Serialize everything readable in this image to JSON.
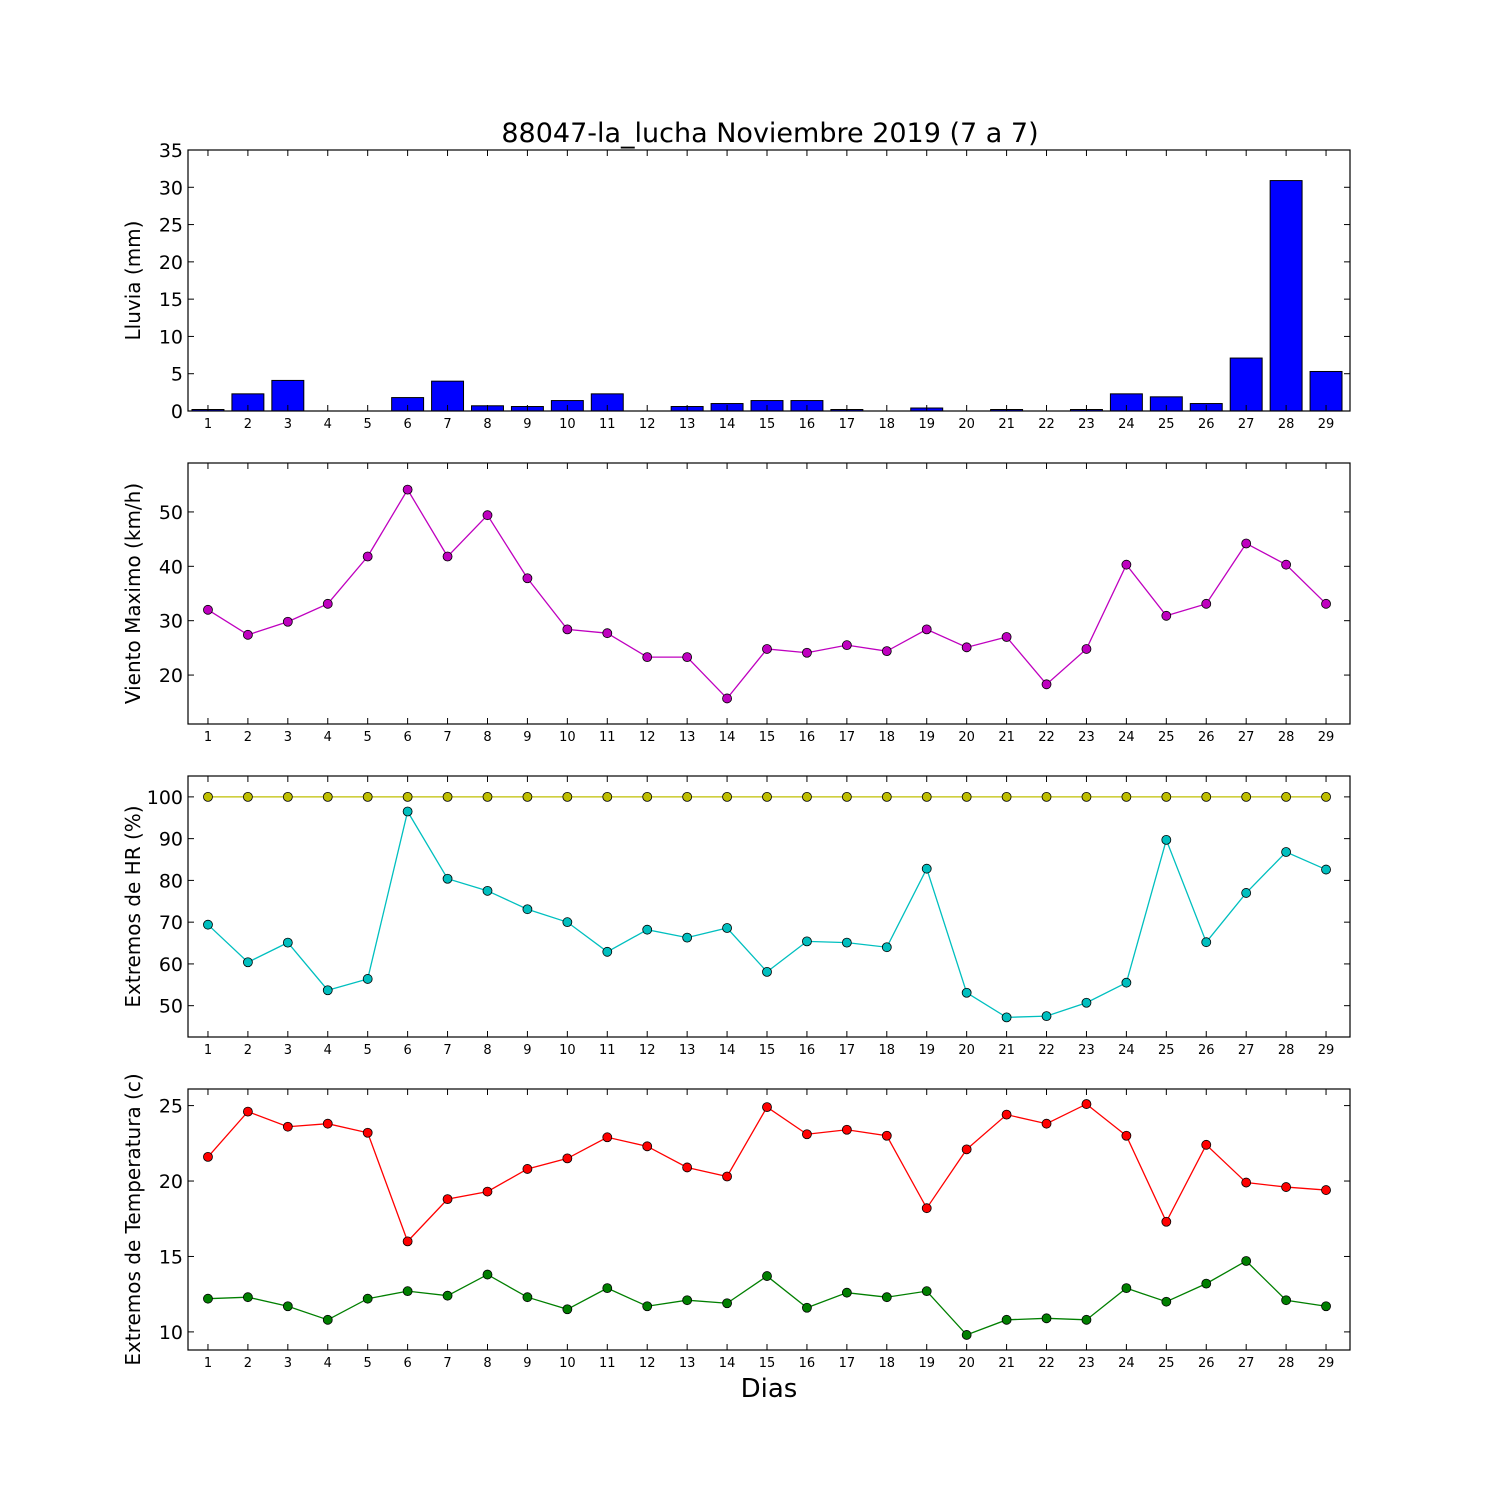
{
  "title": "88047-la_lucha Noviembre 2019  (7 a 7)",
  "xlabel": "Dias",
  "days": [
    1,
    2,
    3,
    4,
    5,
    6,
    7,
    8,
    9,
    10,
    11,
    12,
    13,
    14,
    15,
    16,
    17,
    18,
    19,
    20,
    21,
    22,
    23,
    24,
    25,
    26,
    27,
    28,
    29
  ],
  "chart_data": [
    {
      "type": "bar",
      "ylabel": "Lluvia (mm)",
      "ylim": [
        0,
        35
      ],
      "yticks": [
        0,
        5,
        10,
        15,
        20,
        25,
        30,
        35
      ],
      "categories": [
        1,
        2,
        3,
        4,
        5,
        6,
        7,
        8,
        9,
        10,
        11,
        12,
        13,
        14,
        15,
        16,
        17,
        18,
        19,
        20,
        21,
        22,
        23,
        24,
        25,
        26,
        27,
        28,
        29
      ],
      "series": [
        {
          "color": "#0000ff",
          "values": [
            0.2,
            2.3,
            4.1,
            0,
            0,
            1.8,
            4.0,
            0.7,
            0.6,
            1.4,
            2.3,
            0,
            0.6,
            1.0,
            1.4,
            1.4,
            0.2,
            0,
            0.4,
            0,
            0.2,
            0,
            0.2,
            2.3,
            1.9,
            1.0,
            7.1,
            30.9,
            5.3
          ]
        }
      ]
    },
    {
      "type": "line",
      "ylabel": "Viento Maximo (km/h)",
      "ylim": [
        11,
        59
      ],
      "yticks": [
        20,
        30,
        40,
        50
      ],
      "x": [
        1,
        2,
        3,
        4,
        5,
        6,
        7,
        8,
        9,
        10,
        11,
        12,
        13,
        14,
        15,
        16,
        17,
        18,
        19,
        20,
        21,
        22,
        23,
        24,
        25,
        26,
        27,
        28,
        29
      ],
      "series": [
        {
          "color": "#bf00bf",
          "values": [
            32,
            27.4,
            29.8,
            33.1,
            41.8,
            54.1,
            41.8,
            49.4,
            37.8,
            28.4,
            27.7,
            23.3,
            23.3,
            15.7,
            24.8,
            24.1,
            25.5,
            24.4,
            28.4,
            25.1,
            27,
            18.3,
            24.8,
            40.3,
            30.9,
            33.1,
            44.2,
            40.3,
            33.1
          ]
        }
      ]
    },
    {
      "type": "line",
      "ylabel": "Extremos de HR (%)",
      "ylim": [
        42.5,
        105
      ],
      "yticks": [
        50,
        60,
        70,
        80,
        90,
        100
      ],
      "x": [
        1,
        2,
        3,
        4,
        5,
        6,
        7,
        8,
        9,
        10,
        11,
        12,
        13,
        14,
        15,
        16,
        17,
        18,
        19,
        20,
        21,
        22,
        23,
        24,
        25,
        26,
        27,
        28,
        29
      ],
      "series": [
        {
          "color": "#bfbf00",
          "values": [
            100,
            100,
            100,
            100,
            100,
            100,
            100,
            100,
            100,
            100,
            100,
            100,
            100,
            100,
            100,
            100,
            100,
            100,
            100,
            100,
            100,
            100,
            100,
            100,
            100,
            100,
            100,
            100,
            100
          ]
        },
        {
          "color": "#00bfbf",
          "values": [
            69.4,
            60.4,
            65.1,
            53.7,
            56.4,
            96.5,
            80.4,
            77.5,
            73.1,
            70.0,
            62.9,
            68.2,
            66.3,
            68.6,
            58.1,
            65.4,
            65.1,
            64.0,
            82.8,
            53.1,
            47.2,
            47.5,
            50.7,
            55.5,
            89.7,
            65.2,
            77.0,
            86.8,
            82.6
          ]
        }
      ]
    },
    {
      "type": "line",
      "ylabel": "Extremos de Temperatura (c)",
      "ylim": [
        8.8,
        26.1
      ],
      "yticks": [
        10,
        15,
        20,
        25
      ],
      "x": [
        1,
        2,
        3,
        4,
        5,
        6,
        7,
        8,
        9,
        10,
        11,
        12,
        13,
        14,
        15,
        16,
        17,
        18,
        19,
        20,
        21,
        22,
        23,
        24,
        25,
        26,
        27,
        28,
        29
      ],
      "series": [
        {
          "color": "#ff0000",
          "values": [
            21.6,
            24.6,
            23.6,
            23.8,
            23.2,
            16.0,
            18.8,
            19.3,
            20.8,
            21.5,
            22.9,
            22.3,
            20.9,
            20.3,
            24.9,
            23.1,
            23.4,
            23.0,
            18.2,
            22.1,
            24.4,
            23.8,
            25.1,
            23.0,
            17.3,
            22.4,
            19.9,
            19.6,
            19.4
          ]
        },
        {
          "color": "#007f00",
          "values": [
            12.2,
            12.3,
            11.7,
            10.8,
            12.2,
            12.7,
            12.4,
            13.8,
            12.3,
            11.5,
            12.9,
            11.7,
            12.1,
            11.9,
            13.7,
            11.6,
            12.6,
            12.3,
            12.7,
            9.8,
            10.8,
            10.9,
            10.8,
            12.9,
            12.0,
            13.2,
            14.7,
            12.1,
            11.7
          ]
        }
      ]
    }
  ]
}
